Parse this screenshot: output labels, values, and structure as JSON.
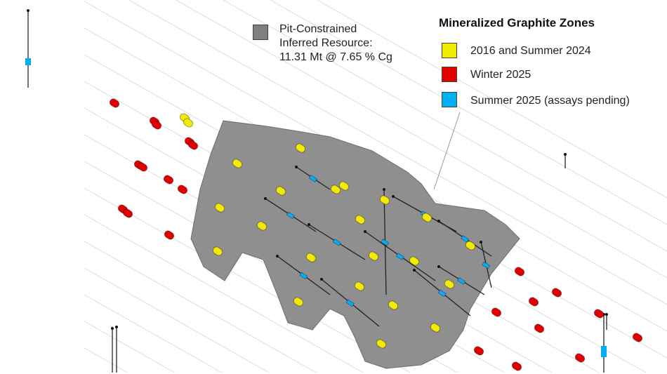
{
  "resource_legend": {
    "line1": "Pit-Constrained",
    "line2": "Inferred Resource:",
    "line3": "11.31 Mt @ 7.65 % Cg",
    "color": "#7f7f7f"
  },
  "zones_legend": {
    "title": "Mineralized Graphite Zones",
    "items": [
      {
        "label": "2016 and Summer 2024",
        "color": "#f2ea00"
      },
      {
        "label": "Winter 2025",
        "color": "#e00000"
      },
      {
        "label": "Summer 2025 (assays pending)",
        "color": "#00b0f0"
      }
    ]
  }
}
